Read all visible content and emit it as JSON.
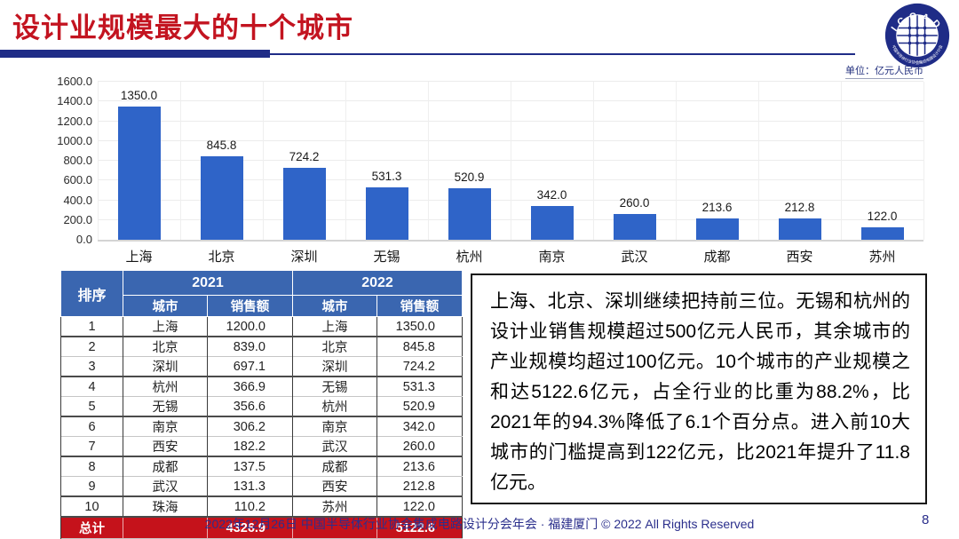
{
  "slide": {
    "title": "设计业规模最大的十个城市",
    "unit_label": "单位：亿元人民币",
    "footer": "2022年12月26日 中国半导体行业协会集成电路设计分会年会 · 福建厦门 © 2022 All Rights Reserved",
    "page_number": "8"
  },
  "logo": {
    "acronym": "ICCAD",
    "ring_text": "中国半导体行业协会集成电路设计分会"
  },
  "chart_data": {
    "type": "bar",
    "title": "",
    "categories": [
      "上海",
      "北京",
      "深圳",
      "无锡",
      "杭州",
      "南京",
      "武汉",
      "成都",
      "西安",
      "苏州"
    ],
    "values": [
      1350.0,
      845.8,
      724.2,
      531.3,
      520.9,
      342.0,
      260.0,
      213.6,
      212.8,
      122.0
    ],
    "data_labels": [
      "1350.0",
      "845.8",
      "724.2",
      "531.3",
      "520.9",
      "342.0",
      "260.0",
      "213.6",
      "212.8",
      "122.0"
    ],
    "xlabel": "",
    "ylabel": "",
    "unit": "亿元人民币",
    "ylim": [
      0,
      1600
    ],
    "ytick_step": 200,
    "yticks": [
      "0.0",
      "200.0",
      "400.0",
      "600.0",
      "800.0",
      "1000.0",
      "1200.0",
      "1400.0",
      "1600.0"
    ],
    "grid": true,
    "legend": false,
    "bar_color": "#2F64C8"
  },
  "table": {
    "col_rank": "排序",
    "col_year_2021": "2021",
    "col_year_2022": "2022",
    "col_city": "城市",
    "col_sales": "销售额",
    "rows": [
      {
        "rank": "1",
        "city_2021": "上海",
        "sales_2021": "1200.0",
        "city_2022": "上海",
        "sales_2022": "1350.0"
      },
      {
        "rank": "2",
        "city_2021": "北京",
        "sales_2021": "839.0",
        "city_2022": "北京",
        "sales_2022": "845.8"
      },
      {
        "rank": "3",
        "city_2021": "深圳",
        "sales_2021": "697.1",
        "city_2022": "深圳",
        "sales_2022": "724.2"
      },
      {
        "rank": "4",
        "city_2021": "杭州",
        "sales_2021": "366.9",
        "city_2022": "无锡",
        "sales_2022": "531.3"
      },
      {
        "rank": "5",
        "city_2021": "无锡",
        "sales_2021": "356.6",
        "city_2022": "杭州",
        "sales_2022": "520.9"
      },
      {
        "rank": "6",
        "city_2021": "南京",
        "sales_2021": "306.2",
        "city_2022": "南京",
        "sales_2022": "342.0"
      },
      {
        "rank": "7",
        "city_2021": "西安",
        "sales_2021": "182.2",
        "city_2022": "武汉",
        "sales_2022": "260.0"
      },
      {
        "rank": "8",
        "city_2021": "成都",
        "sales_2021": "137.5",
        "city_2022": "成都",
        "sales_2022": "213.6"
      },
      {
        "rank": "9",
        "city_2021": "武汉",
        "sales_2021": "131.3",
        "city_2022": "西安",
        "sales_2022": "212.8"
      },
      {
        "rank": "10",
        "city_2021": "珠海",
        "sales_2021": "110.2",
        "city_2022": "苏州",
        "sales_2022": "122.0"
      }
    ],
    "total_label": "总计",
    "total_2021": "4326.9",
    "total_2022": "5122.6"
  },
  "commentary": {
    "text": "上海、北京、深圳继续把持前三位。无锡和杭州的设计业销售规模超过500亿元人民币，其余城市的产业规模均超过100亿元。10个城市的产业规模之和达5122.6亿元，占全行业的比重为88.2%，比2021年的94.3%降低了6.1个百分点。进入前10大城市的门槛提高到122亿元，比2021年提升了11.8亿元。"
  },
  "colors": {
    "title_red": "#C31420",
    "navy": "#1F2C87",
    "footer_navy": "#2B2F8C",
    "bar_blue": "#2F64C8",
    "table_header_blue": "#3A66B0",
    "total_row_red": "#C5121B",
    "gridline": "#ececec"
  }
}
